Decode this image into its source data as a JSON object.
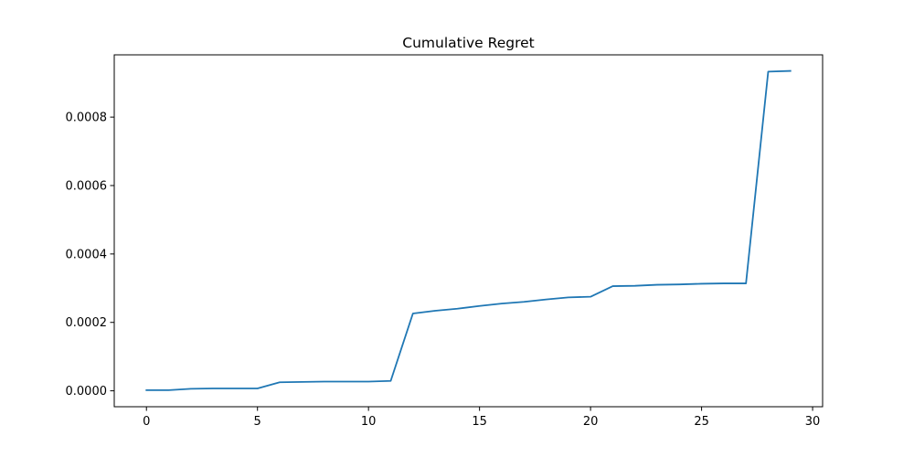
{
  "chart_data": {
    "type": "line",
    "title": "Cumulative Regret",
    "xlabel": "",
    "ylabel": "",
    "xlim": [
      -1.45,
      30.45
    ],
    "ylim": [
      -4.65e-05,
      0.000982
    ],
    "xticks": [
      0,
      5,
      10,
      15,
      20,
      25,
      30
    ],
    "xtick_labels": [
      "0",
      "5",
      "10",
      "15",
      "20",
      "25",
      "30"
    ],
    "yticks": [
      0,
      0.0002,
      0.0004,
      0.0006,
      0.0008
    ],
    "ytick_labels": [
      "0.0000",
      "0.0002",
      "0.0004",
      "0.0006",
      "0.0008"
    ],
    "grid": false,
    "line_color": "#1f77b4",
    "x": [
      0,
      1,
      2,
      3,
      4,
      5,
      6,
      7,
      8,
      9,
      10,
      11,
      12,
      13,
      14,
      15,
      16,
      17,
      18,
      19,
      20,
      21,
      22,
      23,
      24,
      25,
      26,
      27,
      28,
      29
    ],
    "values": [
      2e-06,
      2e-06,
      6e-06,
      7e-06,
      7e-06,
      7e-06,
      2.5e-05,
      2.6e-05,
      2.7e-05,
      2.7e-05,
      2.7e-05,
      2.9e-05,
      0.000226,
      0.000234,
      0.00024,
      0.000248,
      0.000255,
      0.00026,
      0.000267,
      0.000273,
      0.000275,
      0.000306,
      0.000307,
      0.00031,
      0.000311,
      0.000313,
      0.000314,
      0.000314,
      0.000933,
      0.000935
    ]
  }
}
